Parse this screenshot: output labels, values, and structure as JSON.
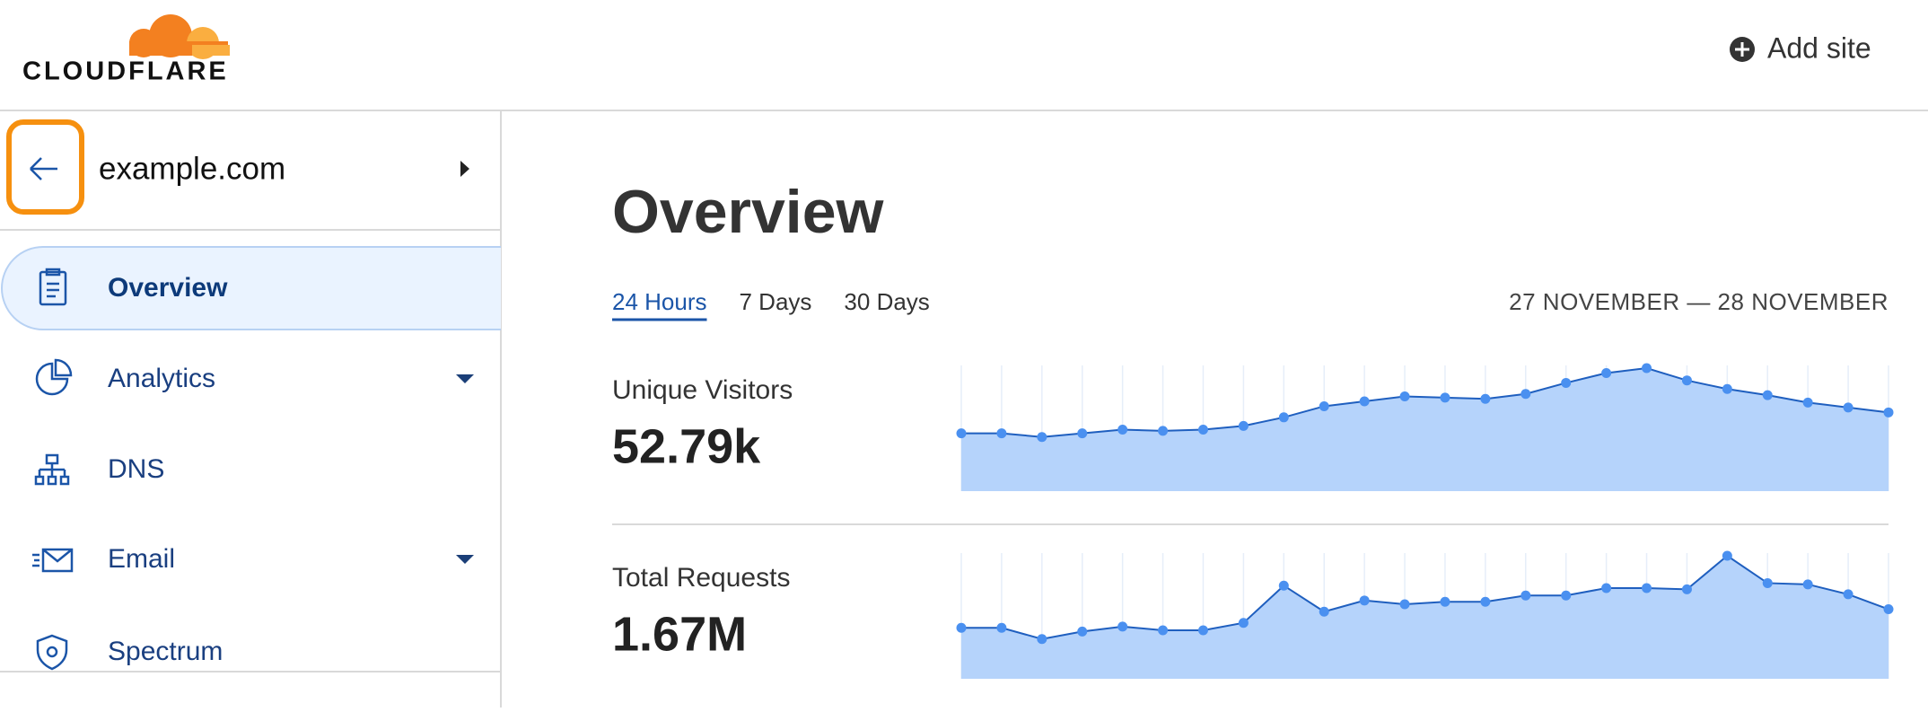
{
  "header": {
    "logo": "CLOUDFLARE",
    "action": "Add site"
  },
  "sidebar": {
    "site": "example.com",
    "nav": [
      {
        "label": "Overview",
        "active": true,
        "expandable": false
      },
      {
        "label": "Analytics",
        "active": false,
        "expandable": true
      },
      {
        "label": "DNS",
        "active": false,
        "expandable": false
      },
      {
        "label": "Email",
        "active": false,
        "expandable": true
      },
      {
        "label": "Spectrum",
        "active": false,
        "expandable": false
      }
    ]
  },
  "main": {
    "title": "Overview",
    "tabs": [
      "24 Hours",
      "7 Days",
      "30 Days"
    ],
    "active_tab": 0,
    "date_range": "27 NOVEMBER — 28 NOVEMBER",
    "stats": [
      {
        "label": "Unique Visitors",
        "value": "52.79k",
        "color": "#4a90f0",
        "series": [
          47,
          47,
          44,
          47,
          50,
          49,
          50,
          53,
          60,
          69,
          73,
          77,
          76,
          75,
          79,
          88,
          96,
          100,
          90,
          83,
          78,
          72,
          68,
          64
        ]
      },
      {
        "label": "Total Requests",
        "value": "1.67M",
        "color": "#4a90f0",
        "series": [
          41,
          41,
          32,
          38,
          42,
          39,
          39,
          45,
          75,
          54,
          63,
          60,
          62,
          62,
          67,
          67,
          73,
          73,
          72,
          99,
          77,
          76,
          68,
          56
        ]
      }
    ]
  }
}
